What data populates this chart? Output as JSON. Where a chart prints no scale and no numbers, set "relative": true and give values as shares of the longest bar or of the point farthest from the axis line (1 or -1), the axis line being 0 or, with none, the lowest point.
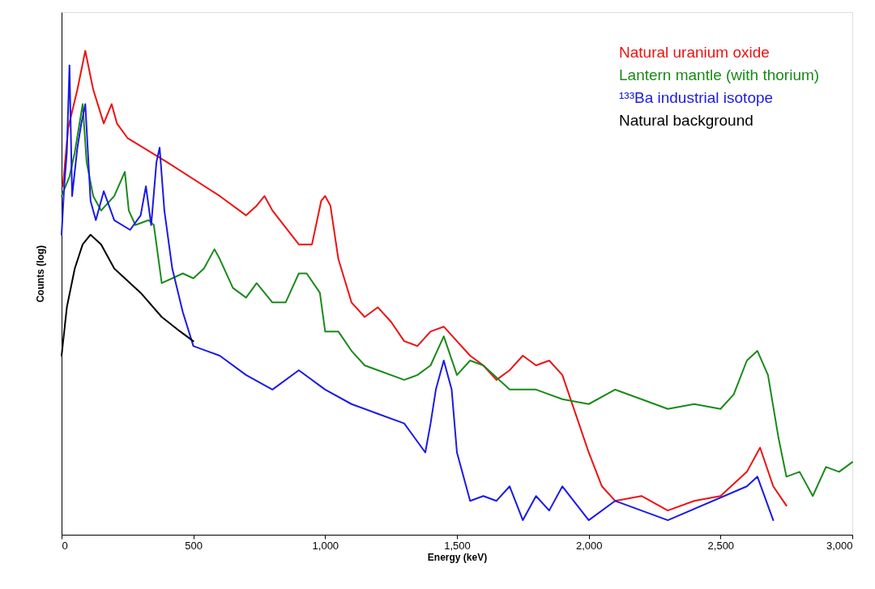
{
  "chart_data": {
    "type": "line",
    "xlabel": "Energy (keV)",
    "ylabel": "Counts (log)",
    "relative": true,
    "xlim": [
      0,
      3000
    ],
    "xticks": [
      0,
      500,
      {
        "value": 1000,
        "label": "1,000"
      },
      {
        "value": 1500,
        "label": "1,500"
      },
      {
        "value": 2000,
        "label": "2,000"
      },
      {
        "value": 2500,
        "label": "2,500"
      },
      {
        "value": 3000,
        "label": "3,000"
      }
    ],
    "grid": false,
    "legend": "top right",
    "line_style": "solid",
    "marker": "none",
    "series": [
      {
        "name": "Natural uranium oxide",
        "color": "#ee1111",
        "x": [
          5,
          25,
          60,
          90,
          120,
          160,
          190,
          210,
          250,
          400,
          600,
          700,
          740,
          770,
          800,
          900,
          950,
          985,
          1000,
          1020,
          1050,
          1100,
          1150,
          1200,
          1250,
          1300,
          1350,
          1400,
          1450,
          1500,
          1550,
          1600,
          1650,
          1700,
          1750,
          1800,
          1850,
          1900,
          1950,
          2000,
          2050,
          2100,
          2200,
          2300,
          2400,
          2500,
          2600,
          2650,
          2700,
          2750
        ],
        "values": [
          0.72,
          0.84,
          0.92,
          1.0,
          0.92,
          0.85,
          0.89,
          0.85,
          0.82,
          0.77,
          0.7,
          0.66,
          0.68,
          0.7,
          0.67,
          0.6,
          0.6,
          0.69,
          0.7,
          0.68,
          0.57,
          0.48,
          0.45,
          0.47,
          0.44,
          0.4,
          0.39,
          0.42,
          0.43,
          0.4,
          0.37,
          0.35,
          0.32,
          0.34,
          0.37,
          0.35,
          0.36,
          0.33,
          0.25,
          0.17,
          0.1,
          0.07,
          0.08,
          0.05,
          0.07,
          0.08,
          0.13,
          0.18,
          0.1,
          0.06
        ]
      },
      {
        "name": "Lantern mantle (with thorium)",
        "color": "#1a8a1a",
        "x": [
          0,
          30,
          50,
          80,
          95,
          120,
          150,
          200,
          240,
          255,
          280,
          330,
          350,
          380,
          420,
          460,
          500,
          540,
          580,
          600,
          650,
          700,
          740,
          800,
          850,
          900,
          930,
          980,
          1000,
          1050,
          1100,
          1150,
          1200,
          1300,
          1350,
          1400,
          1450,
          1500,
          1550,
          1600,
          1700,
          1800,
          1900,
          2000,
          2100,
          2200,
          2300,
          2400,
          2500,
          2550,
          2600,
          2640,
          2680,
          2720,
          2750,
          2800,
          2850,
          2900,
          2950,
          3000
        ],
        "values": [
          0.7,
          0.74,
          0.79,
          0.89,
          0.77,
          0.7,
          0.67,
          0.7,
          0.75,
          0.67,
          0.64,
          0.65,
          0.64,
          0.52,
          0.53,
          0.54,
          0.53,
          0.55,
          0.59,
          0.57,
          0.51,
          0.49,
          0.52,
          0.48,
          0.48,
          0.54,
          0.54,
          0.5,
          0.42,
          0.42,
          0.38,
          0.35,
          0.34,
          0.32,
          0.33,
          0.35,
          0.41,
          0.33,
          0.36,
          0.35,
          0.3,
          0.3,
          0.28,
          0.27,
          0.3,
          0.28,
          0.26,
          0.27,
          0.26,
          0.29,
          0.36,
          0.38,
          0.33,
          0.2,
          0.12,
          0.13,
          0.08,
          0.14,
          0.13,
          0.15
        ]
      },
      {
        "name": "¹³³Ba industrial isotope",
        "color": "#1a1ae6",
        "x": [
          0,
          10,
          20,
          30,
          40,
          60,
          75,
          90,
          110,
          130,
          160,
          200,
          260,
          300,
          320,
          340,
          360,
          372,
          390,
          420,
          460,
          500,
          600,
          700,
          800,
          900,
          1000,
          1100,
          1200,
          1300,
          1380,
          1400,
          1420,
          1450,
          1480,
          1500,
          1550,
          1600,
          1650,
          1700,
          1750,
          1800,
          1850,
          1900,
          2000,
          2100,
          2300,
          2600,
          2640,
          2700
        ],
        "values": [
          0.62,
          0.72,
          0.79,
          0.97,
          0.7,
          0.8,
          0.85,
          0.89,
          0.69,
          0.65,
          0.71,
          0.65,
          0.63,
          0.66,
          0.72,
          0.64,
          0.77,
          0.8,
          0.67,
          0.55,
          0.46,
          0.39,
          0.37,
          0.33,
          0.3,
          0.34,
          0.3,
          0.27,
          0.25,
          0.23,
          0.17,
          0.23,
          0.3,
          0.36,
          0.3,
          0.17,
          0.07,
          0.08,
          0.07,
          0.1,
          0.03,
          0.08,
          0.05,
          0.1,
          0.03,
          0.07,
          0.03,
          0.1,
          0.12,
          0.03
        ]
      },
      {
        "name": "Natural background",
        "color": "#000000",
        "x": [
          0,
          20,
          50,
          80,
          110,
          150,
          200,
          300,
          380,
          450,
          500
        ],
        "values": [
          0.37,
          0.47,
          0.55,
          0.6,
          0.62,
          0.6,
          0.55,
          0.5,
          0.45,
          0.42,
          0.4
        ]
      }
    ]
  }
}
